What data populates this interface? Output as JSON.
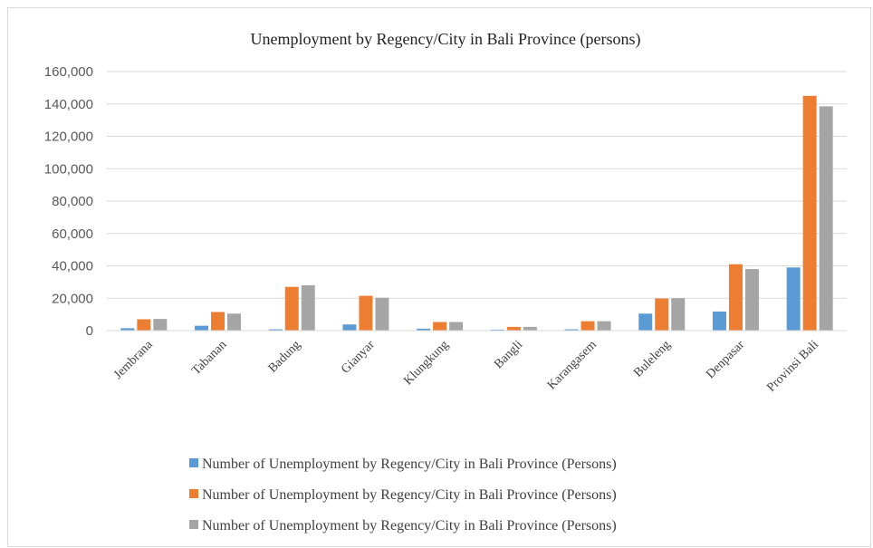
{
  "chart_data": {
    "type": "bar",
    "title": "Unemployment by Regency/City in Bali Province (persons)",
    "xlabel": "",
    "ylabel": "",
    "ylim": [
      0,
      160000
    ],
    "yticks": [
      0,
      20000,
      40000,
      60000,
      80000,
      100000,
      120000,
      140000,
      160000
    ],
    "ytick_labels": [
      "0",
      "20,000",
      "40,000",
      "60,000",
      "80,000",
      "100,000",
      "120,000",
      "140,000",
      "160,000"
    ],
    "grid": true,
    "legend_position": "bottom",
    "categories": [
      "Jembrana",
      "Tabanan",
      "Badung",
      "Gianyar",
      "Klungkung",
      "Bangli",
      "Karangasem",
      "Buleleng",
      "Denpasar",
      "Provinsi Bali"
    ],
    "series": [
      {
        "name": "Number of Unemployment by Regency/City in Bali Province (Persons)",
        "color": "#5b9bd5",
        "values": [
          1500,
          3000,
          800,
          3800,
          1200,
          600,
          800,
          10500,
          11800,
          39000
        ]
      },
      {
        "name": "Number of Unemployment by Regency/City in Bali Province (Persons)",
        "color": "#ed7d31",
        "values": [
          7000,
          11500,
          27000,
          21500,
          5300,
          2300,
          5800,
          19800,
          41000,
          145000
        ]
      },
      {
        "name": "Number of Unemployment by Regency/City in Bali Province (Persons)",
        "color": "#a5a5a5",
        "values": [
          7200,
          10500,
          28000,
          20300,
          5300,
          2300,
          5800,
          20000,
          38000,
          138500
        ]
      }
    ]
  }
}
